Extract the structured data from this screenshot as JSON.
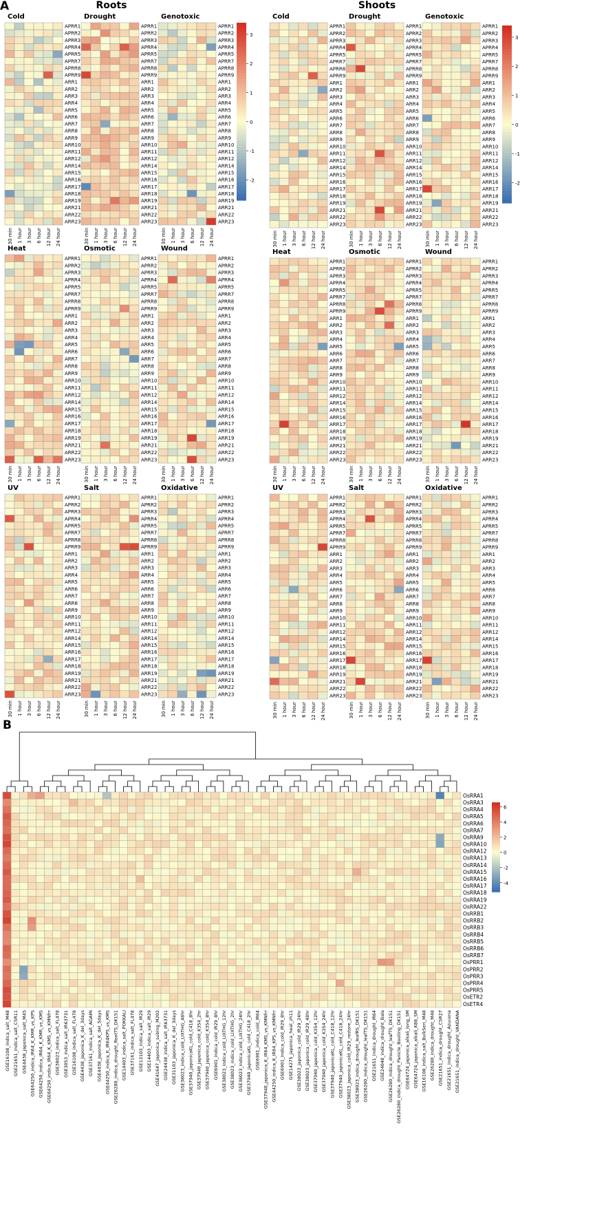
{
  "panel_labels": {
    "a": "A",
    "b": "B"
  },
  "headers": {
    "roots": "Roots",
    "shoots": "Shoots"
  },
  "colors": {
    "low": "#3a6fb0",
    "mid": "#fdfbd0",
    "high": "#d32f20",
    "grid": "#9a9a9a"
  },
  "chart_data": [
    {
      "type": "heatmap",
      "id": "panel-a",
      "title": "",
      "organs": [
        "Roots",
        "Shoots"
      ],
      "stresses": [
        "Cold",
        "Drought",
        "Genotoxic",
        "Heat",
        "Osmotic",
        "Wound",
        "UV",
        "Salt",
        "Oxidative"
      ],
      "timepoints": [
        "30 min",
        "1 hour",
        "3 hour",
        "6 hour",
        "12 hour",
        "24 hour"
      ],
      "genes": [
        "APRR1",
        "APRR2",
        "APRR3",
        "APRR4",
        "APRR5",
        "APRR7",
        "APRR8",
        "APRR9",
        "ARR1",
        "ARR2",
        "ARR3",
        "ARR4",
        "ARR5",
        "ARR6",
        "ARR7",
        "ARR8",
        "ARR9",
        "ARR10",
        "ARR11",
        "ARR12",
        "ARR14",
        "ARR15",
        "ARR16",
        "ARR17",
        "ARR18",
        "ARR19",
        "ARR21",
        "ARR22",
        "ARR23"
      ],
      "colorbar": {
        "ticks": [
          3,
          2,
          1,
          0,
          -1,
          -2
        ],
        "range": [
          -2.7,
          3.4
        ]
      },
      "grid": false,
      "legend_position": "right"
    },
    {
      "type": "heatmap",
      "id": "panel-b",
      "title": "",
      "genes": [
        "OsRRA1",
        "OsRRA3",
        "OsRRA4",
        "OsRRA5",
        "OsRRA6",
        "OsRRA7",
        "OsRRA9",
        "OsRRA10",
        "OsRRA12",
        "OsRRA13",
        "OsRRA14",
        "OsRRA15",
        "OsRRA16",
        "OsRRA17",
        "OsRRA18",
        "OsRRA19",
        "OsRRA22",
        "OsRRB1",
        "OsRRB2",
        "OsRRB3",
        "OsRRB4",
        "OsRRB5",
        "OsRRB6",
        "OsRRB7",
        "OsPRR1",
        "OsPRR2",
        "OsPRR3",
        "OsPRR4",
        "OsPRR5",
        "OsETR2",
        "OsETR4"
      ],
      "samples": [
        "GSE16108_indica_salt_M48",
        "GSE21651_indica_salt_CSR11",
        "GSE4438_japonica_salt_M45",
        "GSE64250_indica_IR64_K_KMR_vs_KPS",
        "GSE64250_indica_IR64_K_KMR_vs_KMS",
        "GSE64250_indica_IR64_K_KMS_vs_KMNfrr",
        "GSE38023_indica_salt_FL478",
        "GSE3053_indica_salt_IR63731",
        "GSE16108_indica_salt_FL478",
        "GSE4438_japonica_K_del_3days",
        "GSE37161_indica_salt_AGAMI",
        "GSE4438_japonica_K_del_5days",
        "GSE44250_indica_K_IR64KPS_vs_KMS",
        "GSE26280_indica_drought_RootTS_DK151",
        "GSE14403_indica_salt_POKKALI",
        "GSE37161_indica_salt_FL478",
        "GSE13103_indica_salt_IR29",
        "GSE14403_indica_salt_IR29",
        "GSE41647_japonica_subing_M202",
        "GSE24438_indica_salt_IR63731",
        "GSE31103_japonica_K_del_3days",
        "GSE38023_indica_cold_LIXTHG_48hr",
        "GSE37940_japonicaKL_cold_C418_8hr",
        "GSE37940_japonica_cold_K354_2hr",
        "GSE37940_japonica_cold_K354_8hr",
        "GSE6901_indica_cold_IR29_8hr",
        "GSE38023_indica_cold_LIXTHG_12hr",
        "GSE38023_indica_cold_LIXTHG_2hr",
        "GSE38023_indica_cold_LIXTHG_24hr",
        "GSE37940_japonicaKL_cold_C418_2hr",
        "GSE6901_indica_cold_IR64",
        "GSE37940_japonica_K_IR64_KMS_vs_KMNfrr",
        "GSE44250_indica_K_IR64_KPS_vs_KMNfrr",
        "GSE6901_indica_cold_IR29_8hr",
        "GSE14275_japonica_heat_zh11",
        "GSE38023_japonica_cold_IR29_24hr",
        "GSE38023_japonica_cold_IR29_48hr",
        "GSE37940_japonica_cold_K354_12hr",
        "GSE37940_japonica_cold_K354_24hr",
        "GSE37940_japonicaKL_cold_C418_12hr",
        "GSE37940_japonicaKL_cold_C418_24hr",
        "GSE38023_japonica_cold_IR29_restore_24hr",
        "GSE38023_indica_drought_leafRS_DK151",
        "GSE26280_indica_drought_leafTS_DK151",
        "GSE21651_indica_drought_IR64",
        "GSE24048_indica_drought_Bala",
        "GSE26280_indica_drought_leafTS_DK151",
        "GSE26280_indica_drought_Panicle_Booting_DK151",
        "GSE64724_japonica_alkali_long_SM",
        "GSE64724_japonica_alkali_K88_SM",
        "GSE16108_indica_salt_BulkSeri_M48",
        "GSE26280_indica_drought_M48",
        "GSE21651_indica_drought_CSR27",
        "GSE21651_indica_drought_Azucena",
        "GSE21651_indica_drought_VANDANA"
      ],
      "colorbar": {
        "ticks": [
          6,
          4,
          2,
          0,
          -2,
          -4
        ],
        "range": [
          -5.2,
          6.6
        ]
      },
      "grid": false,
      "legend_position": "top-right"
    }
  ]
}
